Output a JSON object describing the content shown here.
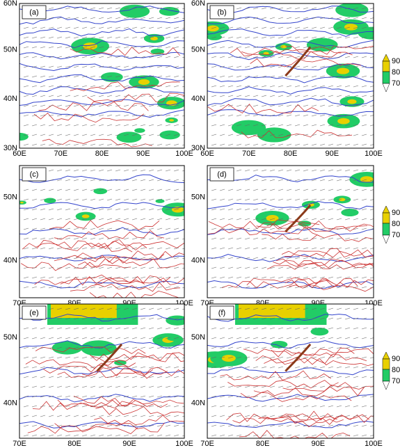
{
  "panels": [
    {
      "label": "(a)",
      "x_labels": [
        "60E",
        "70E",
        "80E",
        "90E",
        "100E"
      ],
      "y_labels": [
        "60N",
        "50N",
        "40N",
        "30N"
      ]
    },
    {
      "label": "(b)",
      "x_labels": [
        "60E",
        "70E",
        "80E",
        "90E",
        "100E"
      ],
      "y_labels": [
        "60N",
        "50N",
        "40N",
        "30N"
      ]
    },
    {
      "label": "(c)",
      "x_labels": [
        "70E",
        "80E",
        "90E",
        "100E"
      ],
      "y_labels": [
        "50N",
        "40N"
      ]
    },
    {
      "label": "(d)",
      "x_labels": [
        "70E",
        "80E",
        "90E",
        "100E"
      ],
      "y_labels": [
        "50N",
        "40N"
      ]
    },
    {
      "label": "(e)",
      "x_labels": [
        "70E",
        "80E",
        "90E",
        "100E"
      ],
      "y_labels": [
        "50N",
        "40N"
      ]
    },
    {
      "label": "(f)",
      "x_labels": [
        "70E",
        "80E",
        "90E",
        "100E"
      ],
      "y_labels": [
        "50N",
        "40N"
      ]
    }
  ],
  "colorbars": [
    {
      "labels": [
        "90",
        "80",
        "70"
      ]
    },
    {
      "labels": [
        "90",
        "80",
        "70"
      ]
    },
    {
      "labels": [
        "90",
        "80",
        "70"
      ]
    }
  ]
}
